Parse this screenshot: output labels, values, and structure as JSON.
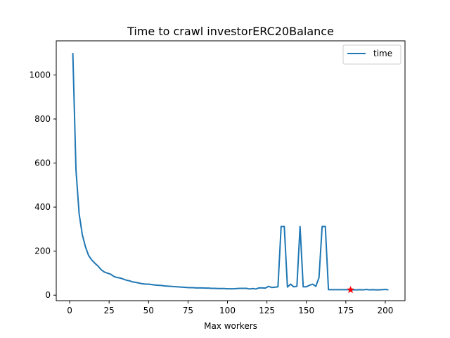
{
  "chart_data": {
    "type": "line",
    "title": "Time to crawl investorERC20Balance",
    "xlabel": "Max workers",
    "ylabel": "",
    "xlim": [
      -8.5,
      212.5
    ],
    "ylim": [
      -25,
      1155
    ],
    "xticks": [
      0,
      25,
      50,
      75,
      100,
      125,
      150,
      175,
      200
    ],
    "yticks": [
      0,
      200,
      400,
      600,
      800,
      1000
    ],
    "grid": false,
    "legend_position": "top-right",
    "series": [
      {
        "name": "time",
        "color": "#1f77b4",
        "x": [
          2,
          4,
          6,
          8,
          10,
          12,
          14,
          16,
          18,
          20,
          22,
          24,
          26,
          28,
          30,
          32,
          34,
          36,
          38,
          40,
          42,
          44,
          46,
          48,
          50,
          52,
          54,
          56,
          58,
          60,
          62,
          64,
          66,
          68,
          70,
          72,
          74,
          76,
          78,
          80,
          82,
          84,
          86,
          88,
          90,
          92,
          94,
          96,
          98,
          100,
          102,
          104,
          106,
          108,
          110,
          112,
          114,
          116,
          118,
          120,
          122,
          124,
          126,
          128,
          130,
          132,
          134,
          136,
          138,
          140,
          142,
          144,
          146,
          148,
          150,
          152,
          154,
          156,
          158,
          160,
          162,
          164,
          166,
          168,
          170,
          172,
          174,
          176,
          178,
          180,
          182,
          184,
          186,
          188,
          190,
          192,
          194,
          196,
          198,
          200,
          202
        ],
        "y": [
          1100,
          570,
          370,
          275,
          220,
          180,
          160,
          145,
          132,
          115,
          105,
          100,
          95,
          85,
          80,
          78,
          73,
          68,
          65,
          60,
          58,
          55,
          52,
          50,
          50,
          48,
          46,
          45,
          44,
          42,
          41,
          40,
          39,
          38,
          37,
          36,
          35,
          34,
          34,
          33,
          33,
          33,
          32,
          32,
          31,
          31,
          30,
          30,
          30,
          29,
          29,
          29,
          30,
          31,
          31,
          31,
          28,
          30,
          28,
          33,
          33,
          32,
          40,
          35,
          36,
          38,
          312,
          312,
          37,
          50,
          38,
          40,
          312,
          38,
          38,
          45,
          50,
          40,
          80,
          312,
          312,
          25,
          25,
          25,
          25,
          25,
          25,
          25,
          25,
          24,
          24,
          25,
          24,
          26,
          24,
          25,
          24,
          24,
          25,
          26,
          24
        ]
      }
    ],
    "marker": {
      "x": 178,
      "y": 24,
      "symbol": "star",
      "color": "#ff0000"
    }
  }
}
